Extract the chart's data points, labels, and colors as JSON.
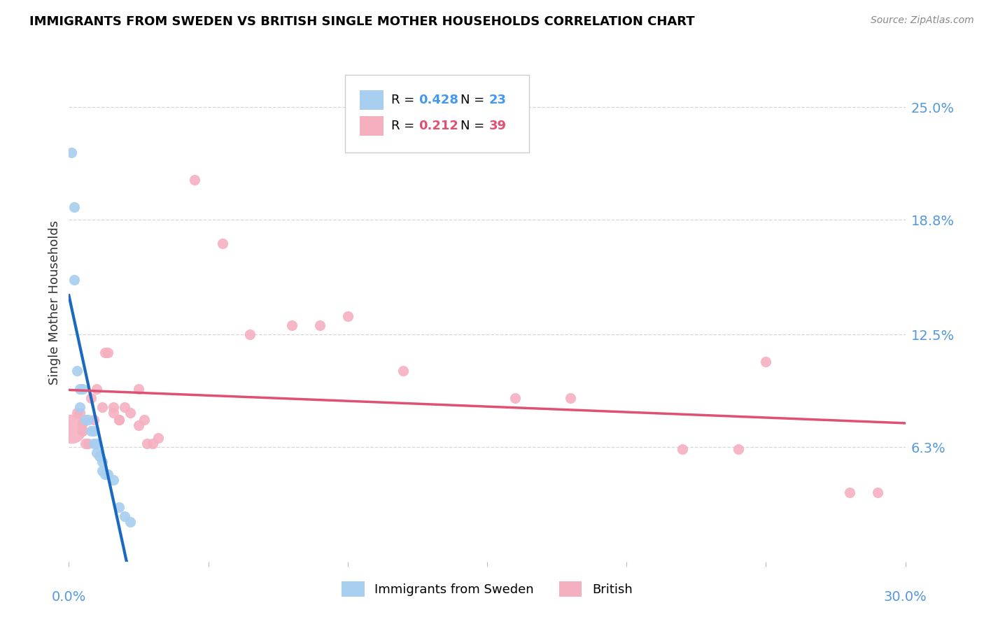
{
  "title": "IMMIGRANTS FROM SWEDEN VS BRITISH SINGLE MOTHER HOUSEHOLDS CORRELATION CHART",
  "source": "Source: ZipAtlas.com",
  "ylabel": "Single Mother Households",
  "ytick_labels": [
    "6.3%",
    "12.5%",
    "18.8%",
    "25.0%"
  ],
  "ytick_values": [
    0.063,
    0.125,
    0.188,
    0.25
  ],
  "xlim": [
    0.0,
    0.3
  ],
  "ylim": [
    0.0,
    0.285
  ],
  "sweden_R": 0.428,
  "sweden_N": 23,
  "british_R": 0.212,
  "british_N": 39,
  "sweden_color": "#a8cef0",
  "british_color": "#f5b0c0",
  "sweden_trendline_color": "#1a6bbf",
  "british_trendline_color": "#e05070",
  "sweden_trendline_dashed_color": "#7aaad8",
  "sweden_scatter": [
    [
      0.001,
      0.225
    ],
    [
      0.002,
      0.195
    ],
    [
      0.002,
      0.155
    ],
    [
      0.003,
      0.105
    ],
    [
      0.004,
      0.095
    ],
    [
      0.004,
      0.085
    ],
    [
      0.005,
      0.095
    ],
    [
      0.006,
      0.078
    ],
    [
      0.007,
      0.078
    ],
    [
      0.008,
      0.072
    ],
    [
      0.009,
      0.072
    ],
    [
      0.009,
      0.065
    ],
    [
      0.01,
      0.065
    ],
    [
      0.01,
      0.06
    ],
    [
      0.011,
      0.058
    ],
    [
      0.012,
      0.055
    ],
    [
      0.012,
      0.05
    ],
    [
      0.013,
      0.048
    ],
    [
      0.014,
      0.048
    ],
    [
      0.016,
      0.045
    ],
    [
      0.018,
      0.03
    ],
    [
      0.02,
      0.025
    ],
    [
      0.022,
      0.022
    ]
  ],
  "british_scatter": [
    [
      0.001,
      0.073
    ],
    [
      0.003,
      0.082
    ],
    [
      0.004,
      0.082
    ],
    [
      0.005,
      0.076
    ],
    [
      0.005,
      0.072
    ],
    [
      0.006,
      0.065
    ],
    [
      0.007,
      0.065
    ],
    [
      0.008,
      0.09
    ],
    [
      0.009,
      0.078
    ],
    [
      0.01,
      0.095
    ],
    [
      0.012,
      0.085
    ],
    [
      0.013,
      0.115
    ],
    [
      0.014,
      0.115
    ],
    [
      0.016,
      0.085
    ],
    [
      0.016,
      0.082
    ],
    [
      0.018,
      0.078
    ],
    [
      0.018,
      0.078
    ],
    [
      0.02,
      0.085
    ],
    [
      0.022,
      0.082
    ],
    [
      0.025,
      0.095
    ],
    [
      0.025,
      0.075
    ],
    [
      0.027,
      0.078
    ],
    [
      0.028,
      0.065
    ],
    [
      0.03,
      0.065
    ],
    [
      0.032,
      0.068
    ],
    [
      0.045,
      0.21
    ],
    [
      0.055,
      0.175
    ],
    [
      0.065,
      0.125
    ],
    [
      0.08,
      0.13
    ],
    [
      0.09,
      0.13
    ],
    [
      0.1,
      0.135
    ],
    [
      0.12,
      0.105
    ],
    [
      0.16,
      0.09
    ],
    [
      0.18,
      0.09
    ],
    [
      0.22,
      0.062
    ],
    [
      0.24,
      0.062
    ],
    [
      0.25,
      0.11
    ],
    [
      0.28,
      0.038
    ],
    [
      0.29,
      0.038
    ]
  ],
  "british_large_idx": 0,
  "british_large_size": 900,
  "sweden_large_indices": [],
  "point_size_default": 120,
  "grid_color": "#cccccc",
  "background_color": "#ffffff",
  "legend_entries": [
    {
      "label": "R =",
      "value": "0.428",
      "N_label": "N =",
      "N_value": "23",
      "color": "#4499ee"
    },
    {
      "label": "R =",
      "value": "0.212",
      "N_label": "N =",
      "N_value": "39",
      "color": "#e05070"
    }
  ]
}
